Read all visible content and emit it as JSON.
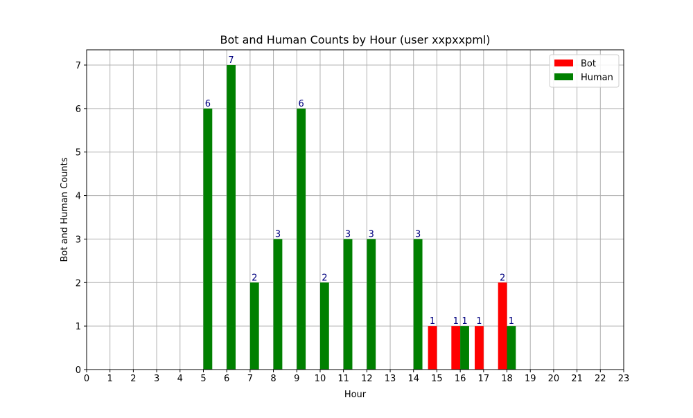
{
  "chart_data": {
    "type": "bar",
    "title": "Bot and Human Counts by Hour (user xxpxxpml)",
    "xlabel": "Hour",
    "ylabel": "Bot and Human Counts",
    "xlim": [
      0,
      23
    ],
    "ylim": [
      0,
      7.35
    ],
    "xticks": [
      0,
      1,
      2,
      3,
      4,
      5,
      6,
      7,
      8,
      9,
      10,
      11,
      12,
      13,
      14,
      15,
      16,
      17,
      18,
      19,
      20,
      21,
      22,
      23
    ],
    "yticks": [
      0,
      1,
      2,
      3,
      4,
      5,
      6,
      7
    ],
    "grid": true,
    "legend_position": "top-right",
    "series": [
      {
        "name": "Bot",
        "color": "#ff0000",
        "points": [
          {
            "x": 15,
            "y": 1
          },
          {
            "x": 16,
            "y": 1
          },
          {
            "x": 17,
            "y": 1
          },
          {
            "x": 18,
            "y": 2
          }
        ]
      },
      {
        "name": "Human",
        "color": "#008000",
        "points": [
          {
            "x": 5,
            "y": 6
          },
          {
            "x": 6,
            "y": 7
          },
          {
            "x": 7,
            "y": 2
          },
          {
            "x": 8,
            "y": 3
          },
          {
            "x": 9,
            "y": 6
          },
          {
            "x": 10,
            "y": 2
          },
          {
            "x": 11,
            "y": 3
          },
          {
            "x": 12,
            "y": 3
          },
          {
            "x": 14,
            "y": 3
          },
          {
            "x": 16,
            "y": 1
          },
          {
            "x": 18,
            "y": 1
          }
        ]
      }
    ],
    "label_color": "#00007f"
  }
}
